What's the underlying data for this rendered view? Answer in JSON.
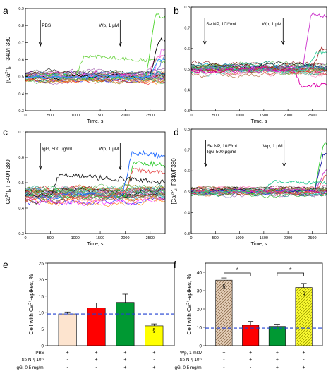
{
  "chart_data": [
    {
      "panel": "a",
      "type": "line",
      "xlabel": "Time, s",
      "ylabel": "[Ca2+]i, F340/F380",
      "xlim": [
        0,
        2800
      ],
      "ylim": [
        0.3,
        0.9
      ],
      "xticks": [
        0,
        500,
        1000,
        1500,
        2000,
        2500
      ],
      "yticks": [
        0.3,
        0.4,
        0.5,
        0.6,
        0.7,
        0.8,
        0.9
      ],
      "annotations": [
        {
          "text": "PBS",
          "x": 300
        },
        {
          "text": "Wp, 1 μM",
          "x": 1900
        }
      ],
      "trace_count": 30,
      "baseline": 0.5,
      "noise": 0.022,
      "events": [
        {
          "color": "#76d64f",
          "at": 1000,
          "peak": 0.62
        },
        {
          "color": "#ff66cc",
          "at": 2450,
          "peak": 0.62
        },
        {
          "color": "#4cd32a",
          "at": 2420,
          "peak": 0.86
        },
        {
          "color": "#000000",
          "at": 2500,
          "peak": 0.72
        },
        {
          "color": "#ee7ff5",
          "at": 2550,
          "peak": 0.66
        },
        {
          "color": "#6a7bd8",
          "at": 2600,
          "peak": 0.62
        },
        {
          "color": "#1aa3ff",
          "at": 2500,
          "peak": 0.6
        }
      ]
    },
    {
      "panel": "b",
      "type": "line",
      "xlabel": "Time, s",
      "ylabel": "",
      "xlim": [
        0,
        2800
      ],
      "ylim": [
        0.3,
        0.8
      ],
      "xticks": [
        0,
        500,
        1000,
        1500,
        2000,
        2500
      ],
      "yticks": [
        0.3,
        0.4,
        0.5,
        0.6,
        0.7,
        0.8
      ],
      "annotations": [
        {
          "text": "Se NP, 10¹⁰/ml",
          "x": 280
        },
        {
          "text": "Wp, 1 μM",
          "x": 1900
        }
      ],
      "trace_count": 28,
      "baseline": 0.5,
      "noise": 0.02,
      "events": [
        {
          "color": "#cc33cc",
          "at": 2300,
          "peak": 0.77
        },
        {
          "color": "#a52a2a",
          "at": 2500,
          "peak": 0.6
        },
        {
          "color": "#33cc99",
          "at": 2400,
          "peak": 0.58
        },
        {
          "color": "#dd00aa",
          "at": 2100,
          "peak": 0.42,
          "dip": true
        }
      ]
    },
    {
      "panel": "c",
      "type": "line",
      "xlabel": "Time, s",
      "ylabel": "[Ca2+]i, F340/F380",
      "xlim": [
        0,
        2800
      ],
      "ylim": [
        0.3,
        0.7
      ],
      "xticks": [
        0,
        500,
        1000,
        1500,
        2000,
        2500
      ],
      "yticks": [
        0.3,
        0.4,
        0.5,
        0.6,
        0.7
      ],
      "annotations": [
        {
          "text": "IgG, 500 μg/ml",
          "x": 300
        },
        {
          "text": "Wp, 1 μM",
          "x": 1900
        }
      ],
      "trace_count": 30,
      "baseline": 0.45,
      "noise": 0.02,
      "events": [
        {
          "color": "#1a66ff",
          "at": 1950,
          "peak": 0.62
        },
        {
          "color": "#33cc33",
          "at": 2000,
          "peak": 0.58
        },
        {
          "color": "#e64d4d",
          "at": 1980,
          "peak": 0.55
        },
        {
          "color": "#222222",
          "at": 500,
          "peak": 0.53
        }
      ]
    },
    {
      "panel": "d",
      "type": "line",
      "xlabel": "Time, s",
      "ylabel": "[Ca2+]i, F340/F380",
      "xlim": [
        0,
        2800
      ],
      "ylim": [
        0.3,
        0.8
      ],
      "xticks": [
        0,
        500,
        1000,
        1500,
        2000,
        2500
      ],
      "yticks": [
        0.3,
        0.4,
        0.5,
        0.6,
        0.7,
        0.8
      ],
      "annotations": [
        {
          "text": "Se NP, 10¹⁰/ml",
          "x": 300,
          "line2": "IgG 500 μg/ml"
        },
        {
          "text": "Wp, 1 μM",
          "x": 1920
        }
      ],
      "trace_count": 26,
      "baseline": 0.5,
      "noise": 0.015,
      "events": [
        {
          "color": "#33cc33",
          "at": 2550,
          "peak": 0.73
        },
        {
          "color": "#1a1aa6",
          "at": 2550,
          "peak": 0.68
        },
        {
          "color": "#cc33cc",
          "at": 2570,
          "peak": 0.6
        },
        {
          "color": "#e64d4d",
          "at": 2580,
          "peak": 0.58
        },
        {
          "color": "#33cc99",
          "at": 1500,
          "peak": 0.55
        }
      ]
    },
    {
      "panel": "e",
      "type": "bar",
      "ylabel": "Cell with Ca2+-spikes, %",
      "ylim": [
        0,
        25
      ],
      "yticks": [
        0,
        5,
        10,
        15,
        20,
        25
      ],
      "reference_line": 9.6,
      "values": [
        9.6,
        11.4,
        13.1,
        6.0
      ],
      "errors": [
        0.6,
        1.5,
        2.5,
        0.6
      ],
      "colors": [
        "#fde4cf",
        "#ff0000",
        "#009933",
        "#ffff00"
      ],
      "hatched": [
        false,
        false,
        false,
        false
      ],
      "markers": [
        "",
        "",
        "",
        "§"
      ],
      "condition_rows": [
        {
          "label": "PBS",
          "values": [
            "+",
            "+",
            "+",
            "+"
          ]
        },
        {
          "label": "Se NP, 10¹⁰",
          "values": [
            "-",
            "+",
            "+",
            "-"
          ]
        },
        {
          "label": "IgG, 0.5 mg/ml",
          "values": [
            "-",
            "-",
            "+",
            "+"
          ]
        }
      ]
    },
    {
      "panel": "f",
      "type": "bar",
      "ylabel": "Cell with Ca2+-spikes, %",
      "ylim": [
        0,
        45
      ],
      "yticks": [
        0,
        10,
        20,
        30,
        40
      ],
      "reference_line": 9.6,
      "values": [
        35.7,
        11.2,
        10.5,
        31.7
      ],
      "errors": [
        1.2,
        2.0,
        1.2,
        2.2
      ],
      "colors": [
        "#e6cdb4",
        "#ff0000",
        "#009933",
        "#ffff00"
      ],
      "hatched": [
        true,
        false,
        false,
        true
      ],
      "markers": [
        "§",
        "",
        "",
        "§"
      ],
      "brackets": [
        {
          "from": 0,
          "to": 1,
          "label": "*"
        },
        {
          "from": 2,
          "to": 3,
          "label": "*"
        }
      ],
      "condition_rows": [
        {
          "label": "Wp, 1 mkM",
          "values": [
            "+",
            "+",
            "+",
            "+"
          ]
        },
        {
          "label": "Se NP, 10¹⁰",
          "values": [
            "-",
            "+",
            "+",
            "-"
          ]
        },
        {
          "label": "IgG, 0.5 mg/ml",
          "values": [
            "-",
            "-",
            "+",
            "+"
          ]
        }
      ]
    }
  ],
  "panel_letters": [
    "a",
    "b",
    "c",
    "d",
    "e",
    "f"
  ],
  "trace_palette": [
    "#000000",
    "#e41a1c",
    "#377eb8",
    "#4daf4a",
    "#984ea3",
    "#ff7f00",
    "#a65628",
    "#f781bf",
    "#00bcd4",
    "#7f7f7f",
    "#1b9e77",
    "#d95f02",
    "#7570b3",
    "#e7298a",
    "#66a61e",
    "#0000ff",
    "#00a000",
    "#ff00ff",
    "#800000",
    "#008080",
    "#808000",
    "#40e0d0",
    "#ff69b4",
    "#556b2f"
  ]
}
